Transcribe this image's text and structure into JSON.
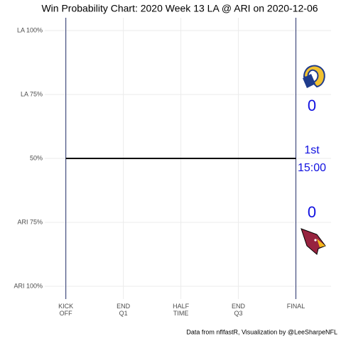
{
  "chart_data": {
    "type": "line",
    "title": "Win Probability Chart: 2020 Week 13 LA @ ARI on 2020-12-06",
    "caption": "Data from nflfastR, Visualization by @LeeSharpeNFL",
    "x": [
      0,
      3600
    ],
    "values": [
      50,
      50
    ],
    "color": "#000000",
    "period_line_color": "#25306b",
    "xlim": [
      -330,
      4150
    ],
    "ylim": [
      -5,
      105
    ],
    "xticks": [
      {
        "value": 0,
        "label": "KICK\nOFF"
      },
      {
        "value": 900,
        "label": "END\nQ1"
      },
      {
        "value": 1800,
        "label": "HALF\nTIME"
      },
      {
        "value": 2700,
        "label": "END\nQ3"
      },
      {
        "value": 3600,
        "label": "FINAL"
      }
    ],
    "yticks": [
      {
        "value": 0,
        "label": "ARI 100%"
      },
      {
        "value": 25,
        "label": "ARI 75%"
      },
      {
        "value": 50,
        "label": "50%"
      },
      {
        "value": 75,
        "label": "LA 75%"
      },
      {
        "value": 100,
        "label": "LA 100%"
      }
    ],
    "grid": true,
    "annotations": [
      "0",
      "1st",
      "15:00",
      "0"
    ],
    "annotation_color": "#1010e0"
  }
}
